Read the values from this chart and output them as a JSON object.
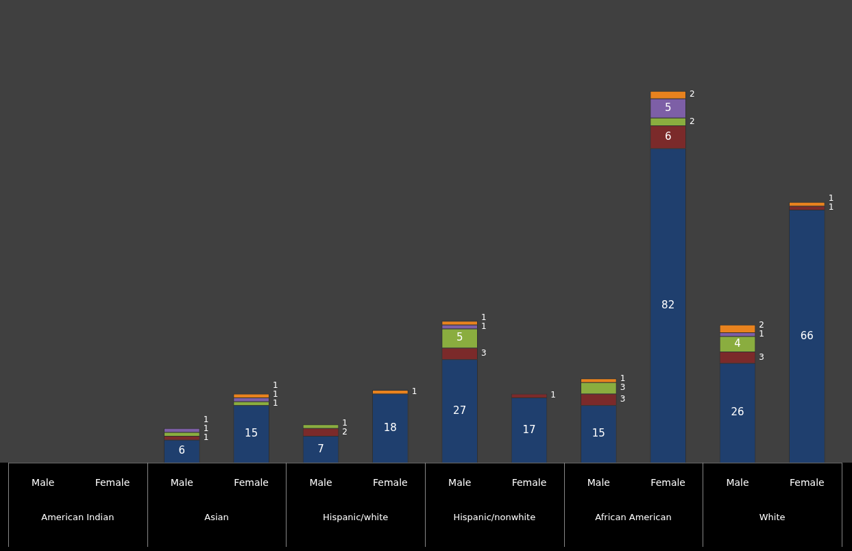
{
  "chart_data": {
    "type": "bar",
    "stacked": true,
    "categories": [
      "Male",
      "Female",
      "Male",
      "Female",
      "Male",
      "Female",
      "Male",
      "Female",
      "Male",
      "Female",
      "Male",
      "Female"
    ],
    "annotations": [
      "American Indian",
      "Asian",
      "Hispanic/white",
      "Hispanic/nonwhite",
      "African American",
      "White"
    ],
    "series": [
      {
        "color": "#1f3f6e",
        "values": [
          null,
          null,
          6,
          15,
          7,
          18,
          27,
          17,
          15,
          82,
          26,
          66
        ],
        "value_labels": [
          null,
          null,
          "6",
          "15",
          "7",
          "18",
          "27",
          "17",
          "15",
          "82",
          "26",
          "66"
        ]
      },
      {
        "color": "#7b2a2a",
        "values": [
          null,
          null,
          1,
          null,
          2,
          null,
          3,
          1,
          3,
          6,
          3,
          1
        ],
        "value_labels": [
          null,
          null,
          "1",
          null,
          "2",
          null,
          "3",
          "1",
          "3",
          "6",
          "3",
          "1"
        ]
      },
      {
        "color": "#8aad3f",
        "values": [
          null,
          null,
          1,
          1,
          1,
          null,
          5,
          null,
          3,
          2,
          4,
          null
        ],
        "value_labels": [
          null,
          null,
          "1",
          "1",
          "1",
          null,
          "5",
          null,
          "3",
          "2",
          "4",
          null
        ]
      },
      {
        "color": "#7d5fa6",
        "values": [
          null,
          null,
          1,
          1,
          null,
          null,
          1,
          null,
          null,
          5,
          1,
          null
        ],
        "value_labels": [
          null,
          null,
          "1",
          "1",
          null,
          null,
          "1",
          null,
          null,
          "5",
          "1",
          null
        ]
      },
      {
        "color": "#e8821e",
        "values": [
          null,
          null,
          null,
          1,
          null,
          1,
          1,
          null,
          1,
          2,
          2,
          1
        ],
        "value_labels": [
          null,
          null,
          null,
          "1",
          null,
          "1",
          "1",
          null,
          "1",
          "2",
          "2",
          "1"
        ]
      }
    ],
    "ylim": [
      0,
      120
    ],
    "tick_labels": "x",
    "grid": false,
    "legend": false
  }
}
